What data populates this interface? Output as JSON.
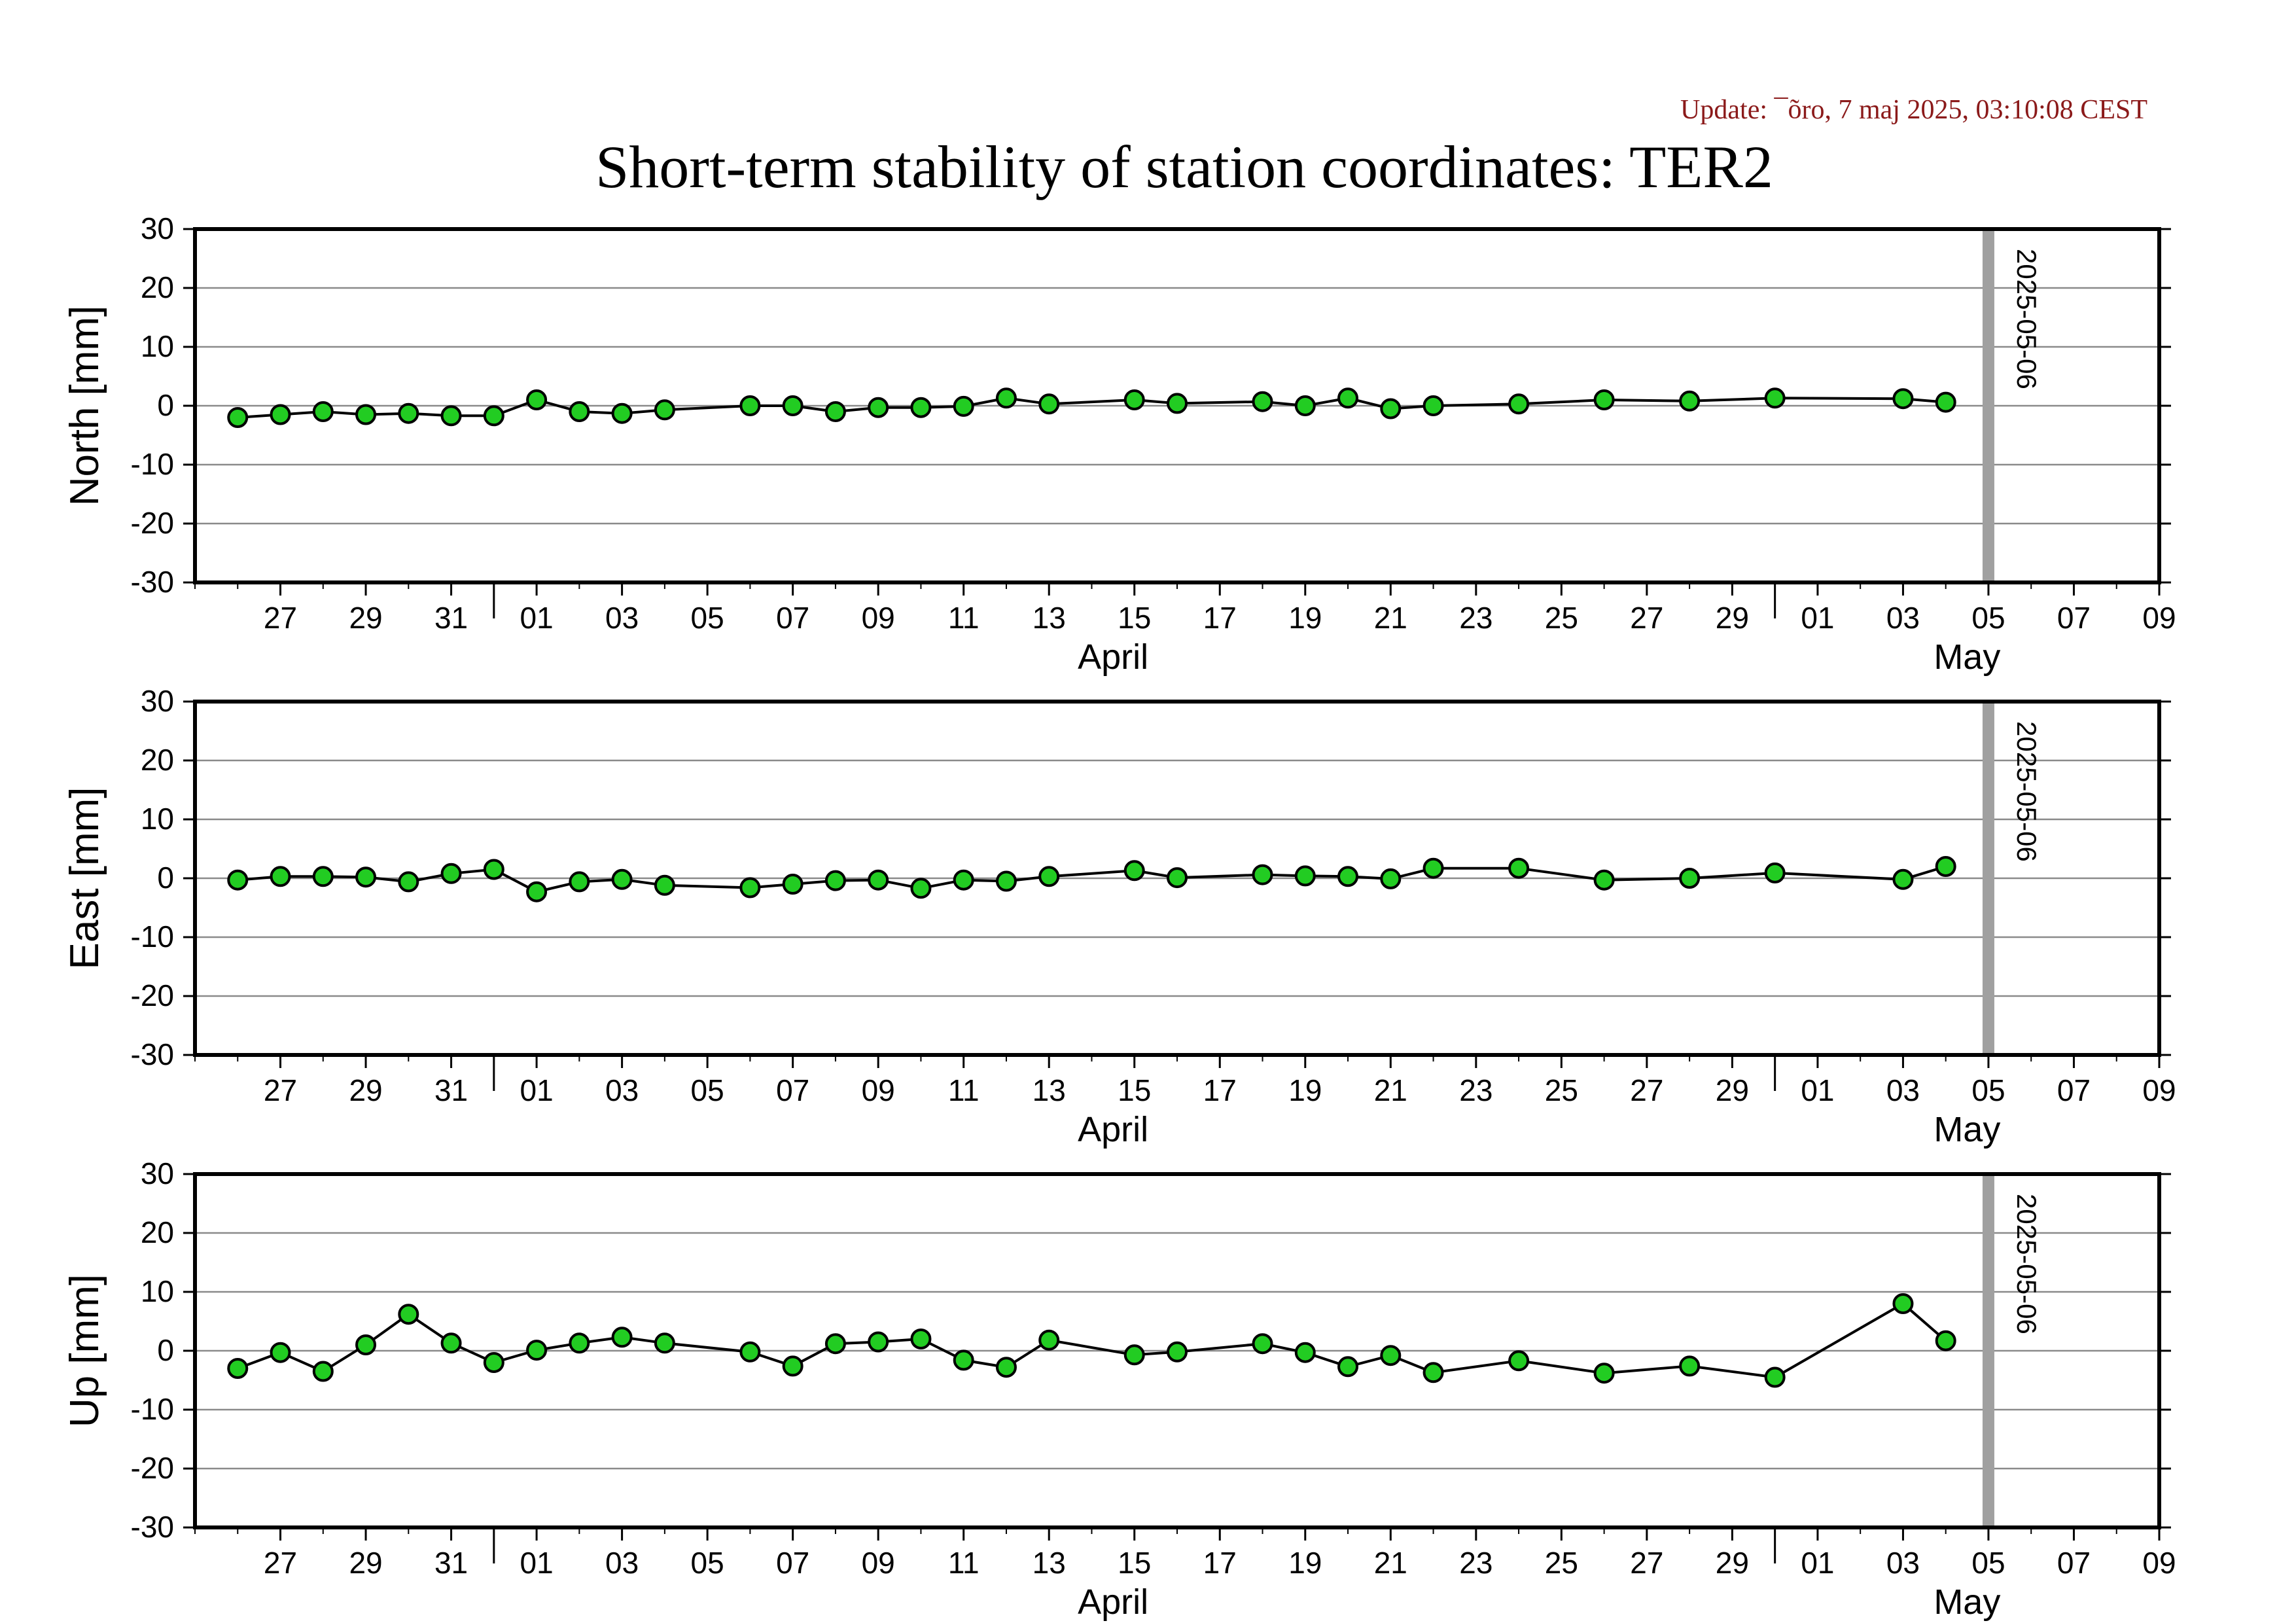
{
  "update_text": "Update: ¯õro, 7 maj 2025, 03:10:08 CEST",
  "title": "Short-term stability of station coordinates: TER2",
  "colors": {
    "update": "#8B1A1A",
    "marker_fill": "#22CC22",
    "marker_edge": "#000000",
    "line": "#000000",
    "grid": "#8a8a8a",
    "vline": "#a0a0a0"
  },
  "chart_data": [
    {
      "type": "line",
      "ylabel": "North [mm]",
      "ylim": [
        -30,
        30
      ],
      "yticks": [
        30,
        20,
        10,
        0,
        -10,
        -20,
        -30
      ],
      "xlim": [
        "2025-03-25",
        "2025-05-10"
      ],
      "xticks": [
        "27",
        "29",
        "31",
        "01",
        "03",
        "05",
        "07",
        "09",
        "11",
        "13",
        "15",
        "17",
        "19",
        "21",
        "23",
        "25",
        "27",
        "29",
        "01",
        "03",
        "05",
        "07",
        "09"
      ],
      "month_labels": [
        "April",
        "May"
      ],
      "marker_date": "2025-05-06",
      "grid": true,
      "x": [
        "2025-03-26",
        "2025-03-27",
        "2025-03-28",
        "2025-03-29",
        "2025-03-30",
        "2025-03-31",
        "2025-04-01",
        "2025-04-02",
        "2025-04-03",
        "2025-04-04",
        "2025-04-05",
        "2025-04-07",
        "2025-04-08",
        "2025-04-09",
        "2025-04-10",
        "2025-04-11",
        "2025-04-12",
        "2025-04-13",
        "2025-04-14",
        "2025-04-16",
        "2025-04-17",
        "2025-04-19",
        "2025-04-20",
        "2025-04-21",
        "2025-04-22",
        "2025-04-23",
        "2025-04-25",
        "2025-04-27",
        "2025-04-29",
        "2025-05-01",
        "2025-05-04",
        "2025-05-05"
      ],
      "values": [
        -2,
        -1.5,
        -1,
        -1.5,
        -1.3,
        -1.7,
        -1.7,
        1,
        -1,
        -1.3,
        -0.7,
        0,
        0,
        -1,
        -0.3,
        -0.3,
        -0.1,
        1.3,
        0.3,
        1,
        0.4,
        0.7,
        0,
        1.3,
        -0.5,
        0,
        0.3,
        1,
        0.8,
        1.3,
        1.2,
        0.6
      ]
    },
    {
      "type": "line",
      "ylabel": "East [mm]",
      "ylim": [
        -30,
        30
      ],
      "yticks": [
        30,
        20,
        10,
        0,
        -10,
        -20,
        -30
      ],
      "xlim": [
        "2025-03-25",
        "2025-05-10"
      ],
      "xticks": [
        "27",
        "29",
        "31",
        "01",
        "03",
        "05",
        "07",
        "09",
        "11",
        "13",
        "15",
        "17",
        "19",
        "21",
        "23",
        "25",
        "27",
        "29",
        "01",
        "03",
        "05",
        "07",
        "09"
      ],
      "month_labels": [
        "April",
        "May"
      ],
      "marker_date": "2025-05-06",
      "grid": true,
      "x": [
        "2025-03-26",
        "2025-03-27",
        "2025-03-28",
        "2025-03-29",
        "2025-03-30",
        "2025-03-31",
        "2025-04-01",
        "2025-04-02",
        "2025-04-03",
        "2025-04-04",
        "2025-04-05",
        "2025-04-07",
        "2025-04-08",
        "2025-04-09",
        "2025-04-10",
        "2025-04-11",
        "2025-04-12",
        "2025-04-13",
        "2025-04-14",
        "2025-04-16",
        "2025-04-17",
        "2025-04-19",
        "2025-04-20",
        "2025-04-21",
        "2025-04-22",
        "2025-04-23",
        "2025-04-25",
        "2025-04-27",
        "2025-04-29",
        "2025-05-01",
        "2025-05-04",
        "2025-05-05"
      ],
      "values": [
        -0.3,
        0.3,
        0.3,
        0.2,
        -0.6,
        0.8,
        1.5,
        -2.3,
        -0.6,
        -0.2,
        -1.2,
        -1.6,
        -1,
        -0.4,
        -0.3,
        -1.7,
        -0.3,
        -0.5,
        0.3,
        1.3,
        0.1,
        0.6,
        0.4,
        0.3,
        -0.1,
        1.7,
        1.7,
        -0.3,
        0,
        0.9,
        -0.2,
        2
      ]
    },
    {
      "type": "line",
      "ylabel": "Up [mm]",
      "ylim": [
        -30,
        30
      ],
      "yticks": [
        30,
        20,
        10,
        0,
        -10,
        -20,
        -30
      ],
      "xlim": [
        "2025-03-25",
        "2025-05-10"
      ],
      "xticks": [
        "27",
        "29",
        "31",
        "01",
        "03",
        "05",
        "07",
        "09",
        "11",
        "13",
        "15",
        "17",
        "19",
        "21",
        "23",
        "25",
        "27",
        "29",
        "01",
        "03",
        "05",
        "07",
        "09"
      ],
      "month_labels": [
        "April",
        "May"
      ],
      "marker_date": "2025-05-06",
      "grid": true,
      "x": [
        "2025-03-26",
        "2025-03-27",
        "2025-03-28",
        "2025-03-29",
        "2025-03-30",
        "2025-03-31",
        "2025-04-01",
        "2025-04-02",
        "2025-04-03",
        "2025-04-04",
        "2025-04-05",
        "2025-04-07",
        "2025-04-08",
        "2025-04-09",
        "2025-04-10",
        "2025-04-11",
        "2025-04-12",
        "2025-04-13",
        "2025-04-14",
        "2025-04-16",
        "2025-04-17",
        "2025-04-19",
        "2025-04-20",
        "2025-04-21",
        "2025-04-22",
        "2025-04-23",
        "2025-04-25",
        "2025-04-27",
        "2025-04-29",
        "2025-05-01",
        "2025-05-04",
        "2025-05-05"
      ],
      "values": [
        -3,
        -0.3,
        -3.5,
        1,
        6.2,
        1.3,
        -2,
        0.1,
        1.3,
        2.3,
        1.3,
        -0.2,
        -2.6,
        1.2,
        1.5,
        2,
        -1.6,
        -2.8,
        1.8,
        -0.7,
        -0.2,
        1.2,
        -0.3,
        -2.7,
        -0.8,
        -3.7,
        -1.7,
        -3.8,
        -2.6,
        -4.5,
        8,
        1.7
      ]
    }
  ]
}
